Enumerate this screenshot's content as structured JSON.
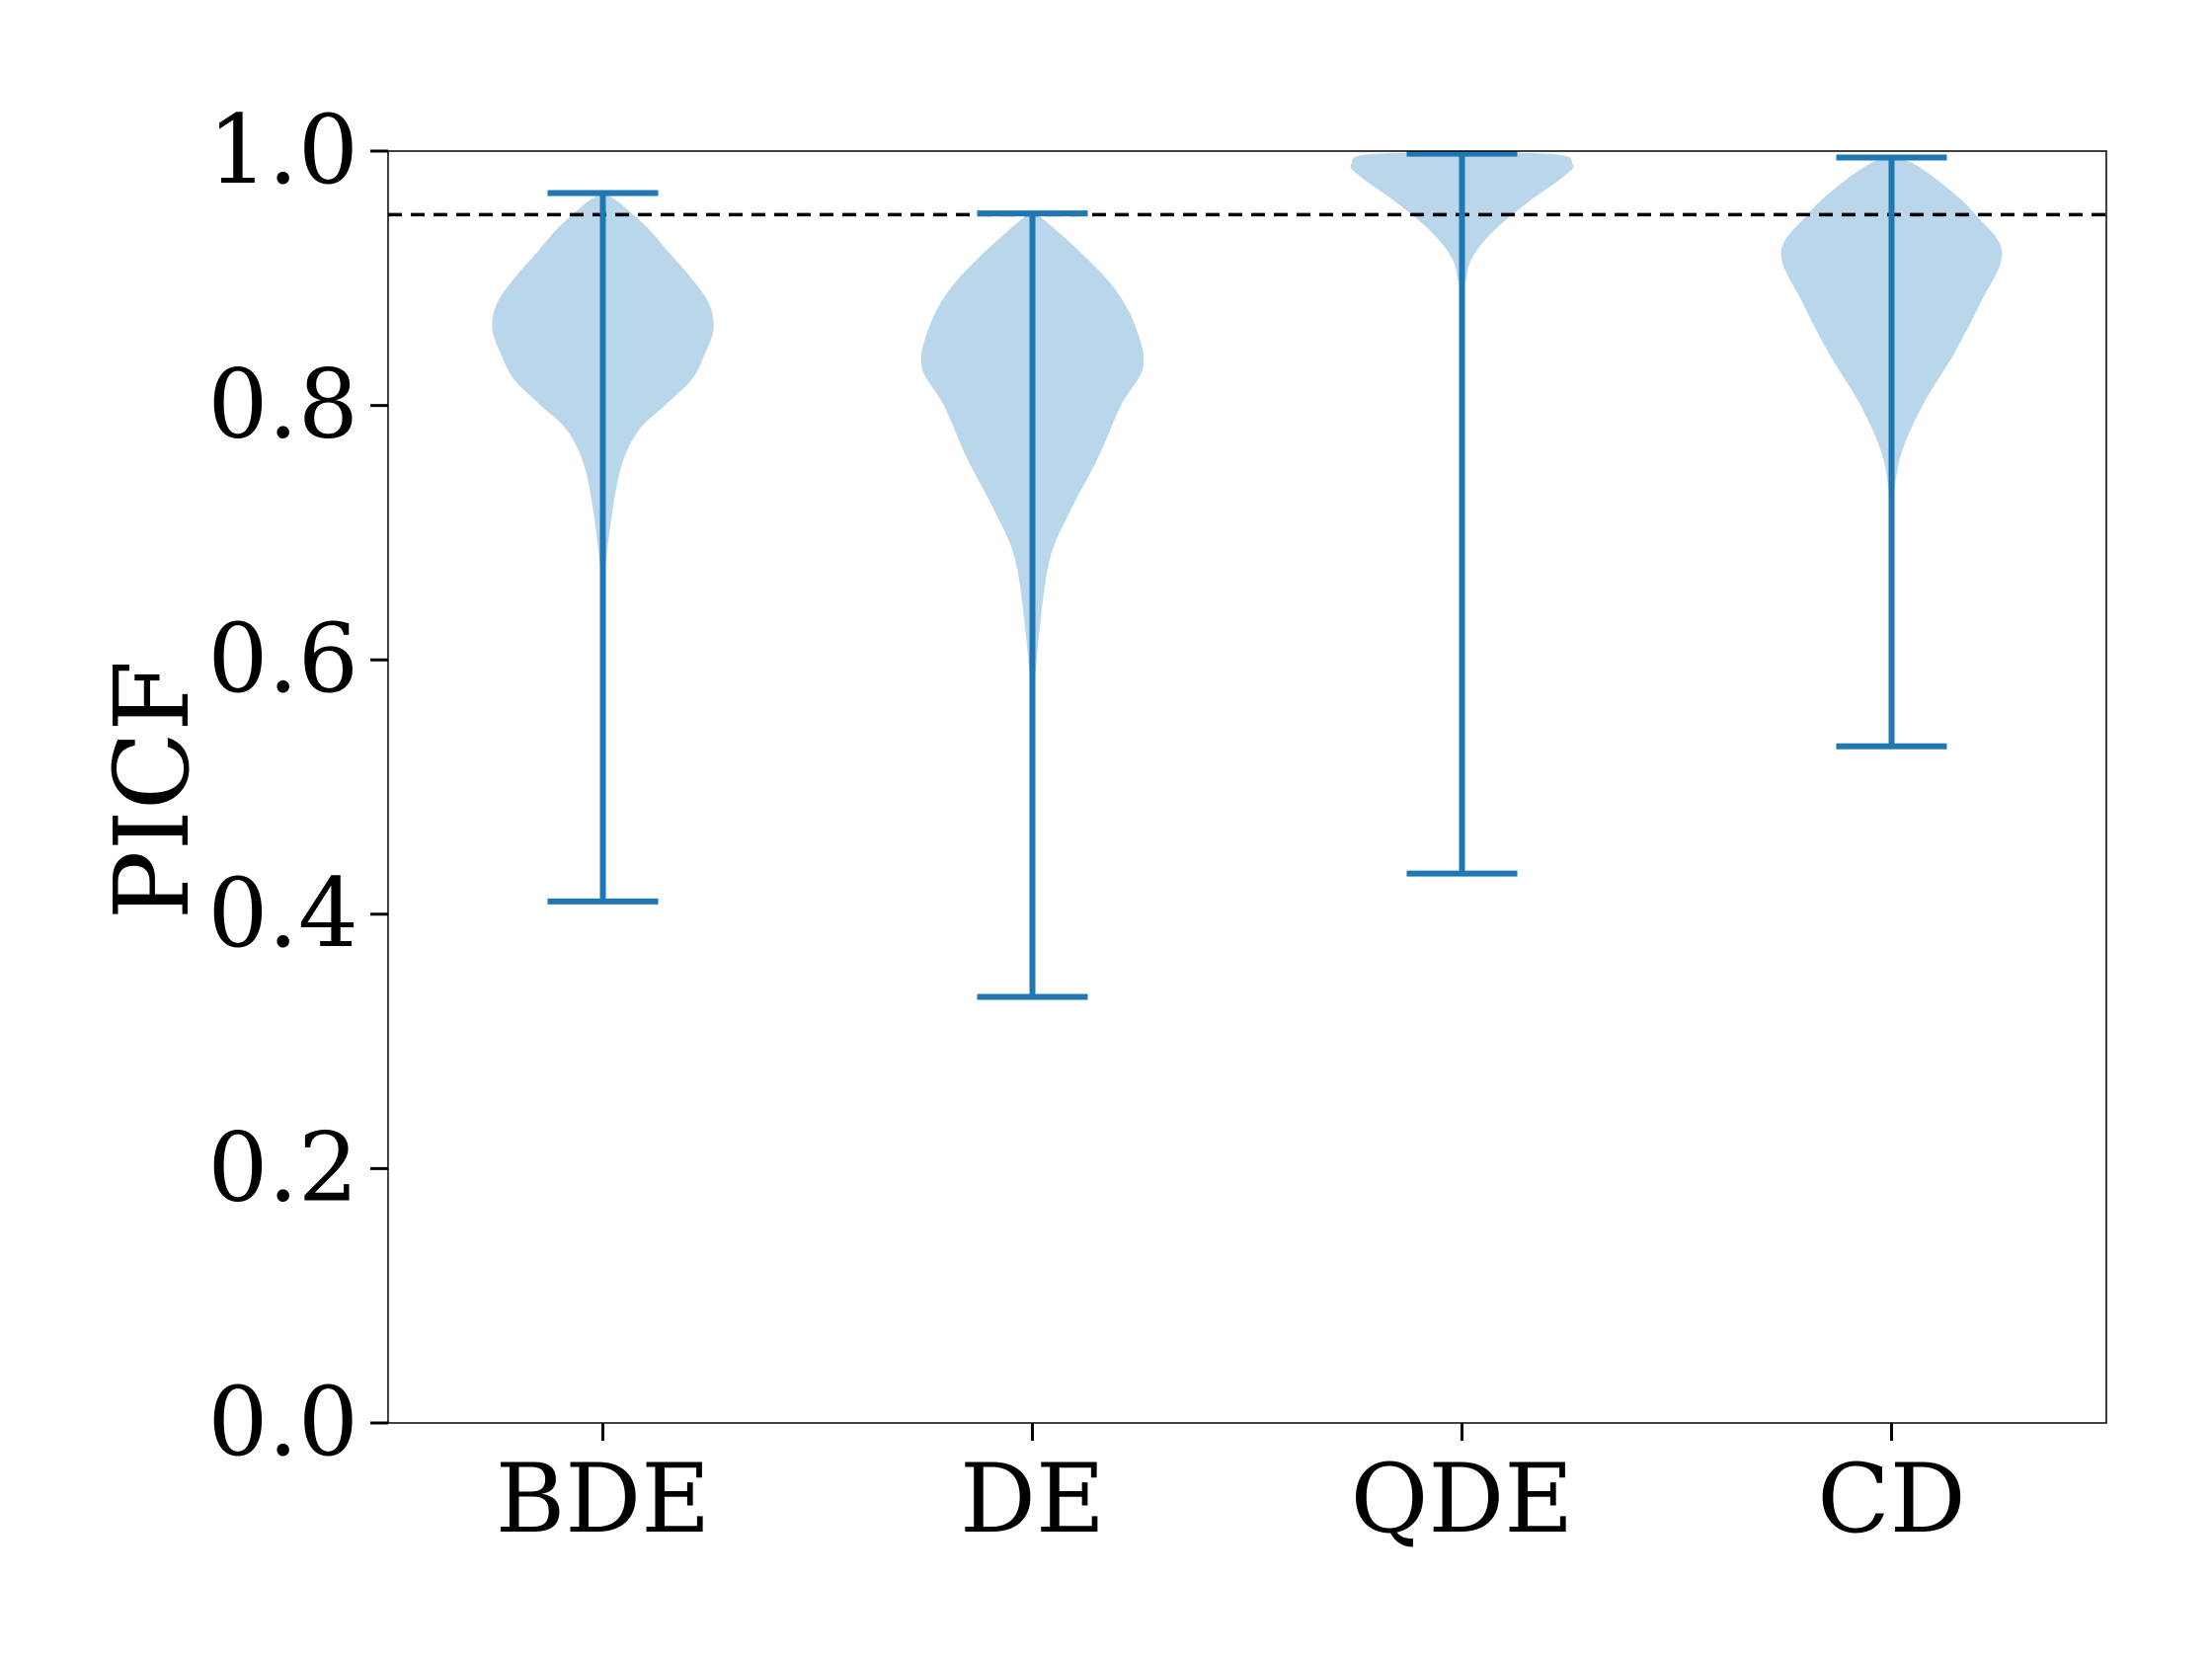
{
  "chart_data": {
    "type": "violin",
    "title": "",
    "xlabel": "",
    "ylabel": "PICF",
    "ylim": [
      0.0,
      1.0
    ],
    "yticks": [
      0.0,
      0.2,
      0.4,
      0.6,
      0.8,
      1.0
    ],
    "ytick_labels": [
      "0.0",
      "0.2",
      "0.4",
      "0.6",
      "0.8",
      "1.0"
    ],
    "categories": [
      "BDE",
      "DE",
      "QDE",
      "CD"
    ],
    "reference_line": {
      "value": 0.95,
      "style": "dashed",
      "color": "#000000"
    },
    "colors": {
      "violin_fill": "#bad6ea",
      "whisker": "#1f77b4"
    },
    "series": [
      {
        "name": "BDE",
        "min": 0.41,
        "max": 0.967,
        "density": [
          [
            0.41,
            0
          ],
          [
            0.55,
            0
          ],
          [
            0.65,
            0.003
          ],
          [
            0.7,
            0.015
          ],
          [
            0.75,
            0.04
          ],
          [
            0.78,
            0.08
          ],
          [
            0.8,
            0.14
          ],
          [
            0.82,
            0.2
          ],
          [
            0.84,
            0.23
          ],
          [
            0.86,
            0.25
          ],
          [
            0.88,
            0.24
          ],
          [
            0.9,
            0.2
          ],
          [
            0.92,
            0.15
          ],
          [
            0.94,
            0.1
          ],
          [
            0.96,
            0.035
          ],
          [
            0.967,
            0.0
          ]
        ]
      },
      {
        "name": "DE",
        "min": 0.335,
        "max": 0.951,
        "density": [
          [
            0.335,
            0
          ],
          [
            0.5,
            0
          ],
          [
            0.56,
            0.002
          ],
          [
            0.62,
            0.015
          ],
          [
            0.68,
            0.04
          ],
          [
            0.72,
            0.09
          ],
          [
            0.76,
            0.15
          ],
          [
            0.8,
            0.2
          ],
          [
            0.83,
            0.25
          ],
          [
            0.86,
            0.235
          ],
          [
            0.89,
            0.19
          ],
          [
            0.92,
            0.11
          ],
          [
            0.95,
            0.012
          ],
          [
            0.951,
            0
          ]
        ]
      },
      {
        "name": "QDE",
        "min": 0.432,
        "max": 0.998,
        "density": [
          [
            0.432,
            0
          ],
          [
            0.85,
            0
          ],
          [
            0.9,
            0.01
          ],
          [
            0.92,
            0.03
          ],
          [
            0.94,
            0.08
          ],
          [
            0.96,
            0.15
          ],
          [
            0.98,
            0.23
          ],
          [
            0.99,
            0.25
          ],
          [
            0.998,
            0.19
          ]
        ]
      },
      {
        "name": "CD",
        "min": 0.532,
        "max": 0.995,
        "density": [
          [
            0.532,
            0
          ],
          [
            0.7,
            0
          ],
          [
            0.72,
            0.003
          ],
          [
            0.76,
            0.02
          ],
          [
            0.8,
            0.07
          ],
          [
            0.84,
            0.14
          ],
          [
            0.88,
            0.2
          ],
          [
            0.92,
            0.25
          ],
          [
            0.95,
            0.19
          ],
          [
            0.97,
            0.13
          ],
          [
            0.99,
            0.05
          ],
          [
            0.995,
            0
          ]
        ]
      }
    ]
  }
}
